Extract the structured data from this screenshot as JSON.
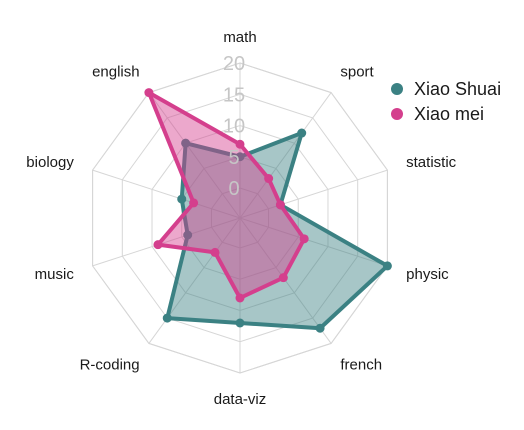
{
  "chart_data": {
    "type": "radar",
    "axes": [
      "math",
      "sport",
      "statistic",
      "physic",
      "french",
      "data-viz",
      "R-coding",
      "music",
      "biology",
      "english"
    ],
    "r_range": [
      0,
      20
    ],
    "ticks": [
      "0",
      "5",
      "10",
      "15",
      "20"
    ],
    "grid": true,
    "legend_position": "top-right",
    "series": [
      {
        "name": "Xiao Shuai",
        "color": "#3b8183",
        "values": [
          5,
          12,
          2,
          20,
          17,
          12,
          15,
          4,
          5,
          10
        ]
      },
      {
        "name": "Xiao mei",
        "color": "#d43f8d",
        "values": [
          7,
          3,
          2,
          6,
          7,
          8,
          2,
          9,
          3,
          20
        ]
      }
    ]
  }
}
